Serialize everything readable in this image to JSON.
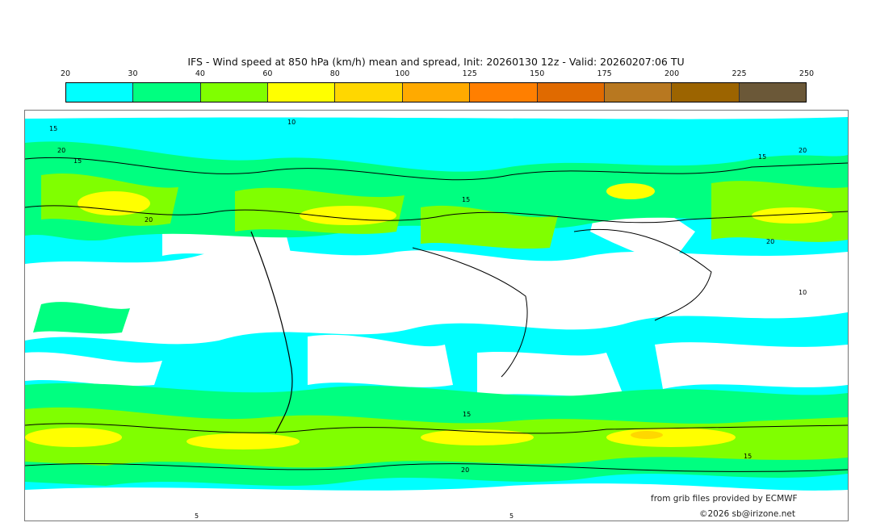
{
  "title": "IFS - Wind speed at 850 hPa (km/h) mean and spread, Init: 20260130 12z - Valid: 20260207:06 TU",
  "colorbar": {
    "ticks": [
      "20",
      "30",
      "40",
      "60",
      "80",
      "100",
      "125",
      "150",
      "175",
      "200",
      "225",
      "250"
    ],
    "colors": [
      "#00ffff",
      "#00ff80",
      "#80ff00",
      "#ffff00",
      "#ffd700",
      "#ffaa00",
      "#ff7f00",
      "#e06a00",
      "#b87820",
      "#9c6400",
      "#6b5838"
    ]
  },
  "map": {
    "background_color": "#00ffff",
    "calm_color": "#ffffff",
    "contour_labels": [
      "10",
      "15",
      "20",
      "15",
      "20",
      "15",
      "20",
      "10",
      "15",
      "20",
      "15",
      "20",
      "15",
      "5",
      "5"
    ]
  },
  "credits": {
    "source": "from grib files provided by ECMWF",
    "copyright": "©2026 sb@irizone.net"
  }
}
